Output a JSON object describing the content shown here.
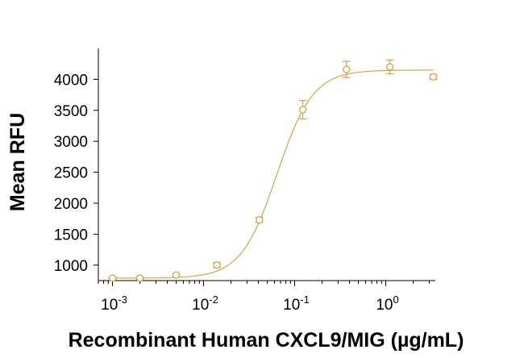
{
  "chart_data": {
    "type": "scatter",
    "title": "",
    "xlabel": "Recombinant Human CXCL9/MIG (µg/mL)",
    "ylabel": "Mean RFU",
    "x_scale": "log",
    "xlim": [
      0.0007,
      3.5
    ],
    "ylim": [
      750,
      4500
    ],
    "x_ticks": [
      {
        "value": 0.001,
        "base": "10",
        "exp": "-3"
      },
      {
        "value": 0.01,
        "base": "10",
        "exp": "-2"
      },
      {
        "value": 0.1,
        "base": "10",
        "exp": "-1"
      },
      {
        "value": 1,
        "base": "10",
        "exp": "0"
      }
    ],
    "y_ticks": [
      {
        "value": 1000,
        "label": "1000"
      },
      {
        "value": 1500,
        "label": "1500"
      },
      {
        "value": 2000,
        "label": "2000"
      },
      {
        "value": 2500,
        "label": "2500"
      },
      {
        "value": 3000,
        "label": "3000"
      },
      {
        "value": 3500,
        "label": "3500"
      },
      {
        "value": 4000,
        "label": "4000"
      }
    ],
    "grid": false,
    "legend": "none",
    "color": "#D9A441",
    "points": [
      {
        "x": 0.001,
        "y": 790,
        "err": 15
      },
      {
        "x": 0.002,
        "y": 790,
        "err": 20
      },
      {
        "x": 0.005,
        "y": 840,
        "err": 20
      },
      {
        "x": 0.014,
        "y": 1000,
        "err": 40
      },
      {
        "x": 0.041,
        "y": 1730,
        "err": 40
      },
      {
        "x": 0.123,
        "y": 3510,
        "err": 150
      },
      {
        "x": 0.37,
        "y": 4160,
        "err": 130
      },
      {
        "x": 1.11,
        "y": 4200,
        "err": 110
      },
      {
        "x": 3.33,
        "y": 4040,
        "err": 40
      }
    ],
    "fit": {
      "bottom": 790,
      "top": 4150,
      "ec50": 0.064,
      "hill": 2.2
    }
  }
}
